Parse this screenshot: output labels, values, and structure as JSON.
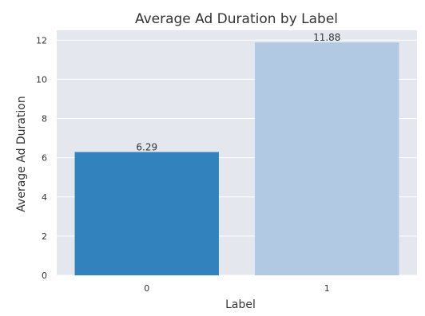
{
  "chart_data": {
    "type": "bar",
    "title": "Average Ad Duration by Label",
    "xlabel": "Label",
    "ylabel": "Average Ad Duration",
    "categories": [
      "0",
      "1"
    ],
    "values": [
      6.29,
      11.88
    ],
    "data_labels": [
      "6.29",
      "11.88"
    ],
    "ylim": [
      0,
      12.5
    ],
    "yticks": [
      0,
      2,
      4,
      6,
      8,
      10,
      12
    ],
    "grid": true,
    "legend": "none",
    "colors": {
      "bars": [
        "#3182bd",
        "#b1c9e3"
      ],
      "plot_background": "#e5e7ef",
      "grid": "#ffffff",
      "text": "#333333"
    }
  }
}
